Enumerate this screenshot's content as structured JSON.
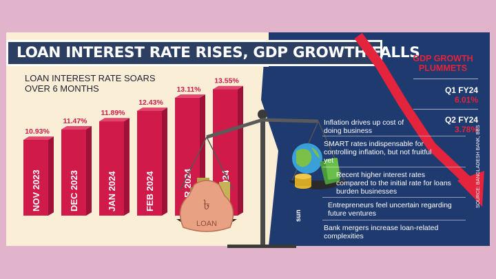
{
  "colors": {
    "background": "#e2b4cc",
    "card": "#fbeed6",
    "blue_panel": "#1f3a6f",
    "bar": "#d01b4a",
    "bar_dark": "#9e1238",
    "accent_red": "#e4233c",
    "banner": "#2c3f63"
  },
  "title": "LOAN INTEREST RATE RISES, GDP GROWTH FALLS",
  "chart_data": {
    "type": "bar",
    "title": "LOAN INTEREST RATE SOARS OVER 6 MONTHS",
    "categories": [
      "NOV 2023",
      "DEC 2023",
      "JAN 2024",
      "FEB 2024",
      "MAR 2024",
      "APR 2024"
    ],
    "values": [
      10.93,
      11.47,
      11.89,
      12.43,
      13.11,
      13.55
    ],
    "data_labels": [
      "10.93%",
      "11.47%",
      "11.89%",
      "12.43%",
      "13.11%",
      "13.55%"
    ],
    "xlabel": "",
    "ylabel": "",
    "ylim": [
      7,
      14
    ],
    "grid": false
  },
  "gdp": {
    "title": "GDP GROWTH PLUMMETS",
    "items": [
      {
        "label": "Q1 FY24",
        "value": "6.01%"
      },
      {
        "label": "Q2 FY24",
        "value": "3.78%"
      }
    ]
  },
  "points": [
    "Inflation drives up cost of doing business",
    "SMART rates indispensable for controlling inflation, but not fruitful yet",
    "Recent higher interest rates compared to the initial rate for loans burden businesses",
    "Entrepreneurs feel uncertain regarding future ventures",
    "Bank mergers increase loan-related complexities"
  ],
  "illustration": {
    "bag_symbol": "৳",
    "bag_label": "LOAN",
    "icons": [
      "balance-scale-icon",
      "loan-bag-icon",
      "globe-icon",
      "cash-icon",
      "coin-stack-icon",
      "building-icon",
      "down-arrow-icon"
    ]
  },
  "source": "SOURCE: BANGLADESH BANK, BBS",
  "logo": "sun"
}
